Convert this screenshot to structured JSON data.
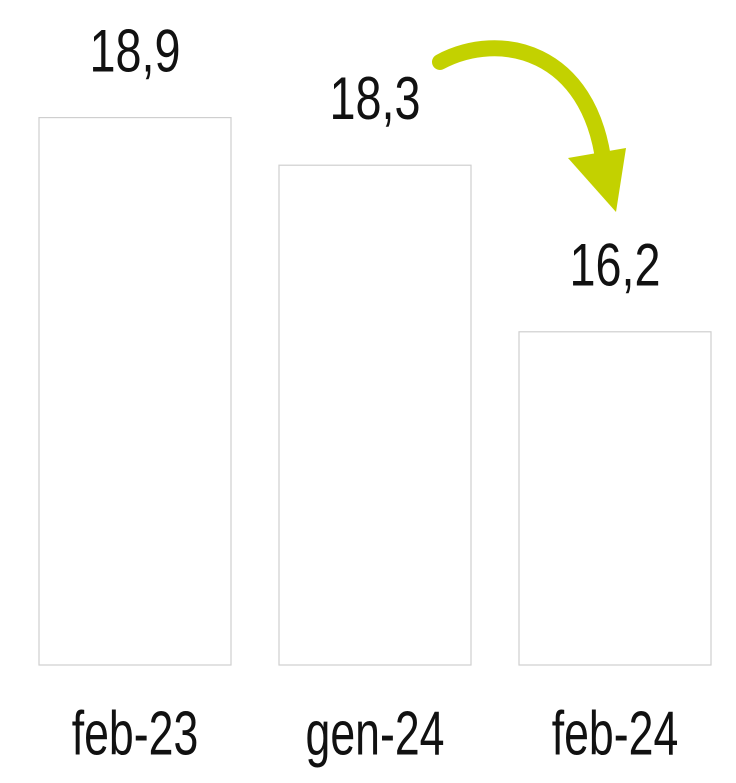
{
  "chart_data": {
    "type": "bar",
    "categories": [
      "feb-23",
      "gen-24",
      "feb-24"
    ],
    "values": [
      18.9,
      18.3,
      16.2
    ],
    "value_labels": [
      "18,9",
      "18,3",
      "16,2"
    ],
    "ylim": [
      12,
      19.5
    ]
  }
}
